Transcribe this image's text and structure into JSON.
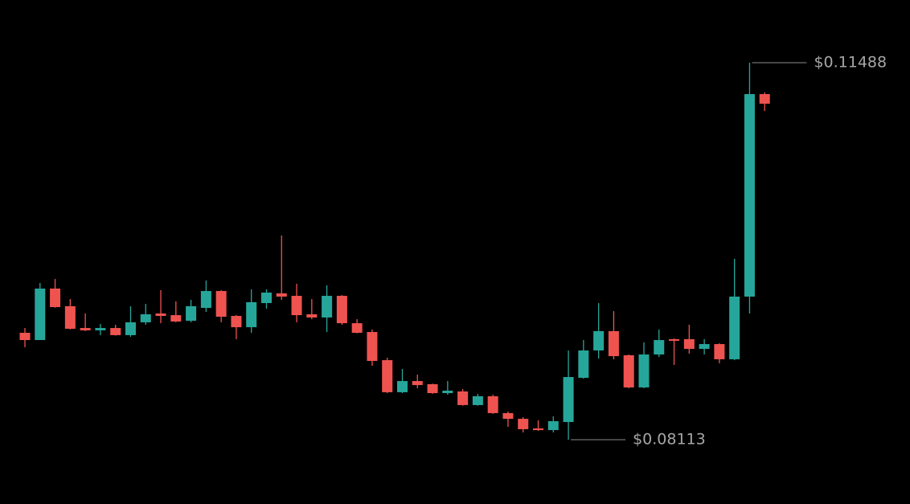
{
  "chart_data": {
    "type": "candlestick",
    "up_color": "#26a69a",
    "down_color": "#ef5350",
    "open": [
      0.0907,
      0.09005,
      0.09466,
      0.09308,
      0.09113,
      0.09092,
      0.09113,
      0.09049,
      0.09164,
      0.09243,
      0.09228,
      0.09178,
      0.09293,
      0.09444,
      0.09221,
      0.0912,
      0.09336,
      0.09423,
      0.09401,
      0.09236,
      0.09207,
      0.09401,
      0.09156,
      0.09077,
      0.08825,
      0.08538,
      0.08638,
      0.0861,
      0.0853,
      0.08545,
      0.08423,
      0.08502,
      0.08351,
      0.083,
      0.08214,
      0.08199,
      0.08271,
      0.08667,
      0.08912,
      0.09085,
      0.08869,
      0.08581,
      0.08876,
      0.09013,
      0.09013,
      0.08926,
      0.08969,
      0.08833,
      0.09394,
      0.11207
    ],
    "high": [
      0.09113,
      0.09516,
      0.09552,
      0.09372,
      0.09243,
      0.09149,
      0.09142,
      0.09308,
      0.09329,
      0.09452,
      0.09351,
      0.09365,
      0.09538,
      0.09452,
      0.0923,
      0.09459,
      0.09459,
      0.09941,
      0.09509,
      0.09372,
      0.09495,
      0.09408,
      0.09192,
      0.09099,
      0.08847,
      0.08746,
      0.08696,
      0.08615,
      0.08638,
      0.08566,
      0.08523,
      0.08516,
      0.08365,
      0.08315,
      0.08286,
      0.08322,
      0.08912,
      0.09005,
      0.09336,
      0.09264,
      0.08876,
      0.08984,
      0.09099,
      0.0902,
      0.09142,
      0.09013,
      0.08976,
      0.09732,
      0.11488,
      0.11222
    ],
    "low": [
      0.08941,
      0.09005,
      0.09295,
      0.091,
      0.09085,
      0.09049,
      0.09045,
      0.09034,
      0.09142,
      0.09156,
      0.09164,
      0.09164,
      0.09257,
      0.09164,
      0.09013,
      0.0907,
      0.09286,
      0.09365,
      0.09164,
      0.09192,
      0.09077,
      0.09142,
      0.09065,
      0.08775,
      0.0853,
      0.0853,
      0.08574,
      0.08523,
      0.08516,
      0.08418,
      0.08418,
      0.08344,
      0.08228,
      0.08178,
      0.08192,
      0.08178,
      0.08113,
      0.0866,
      0.0884,
      0.08833,
      0.08574,
      0.08574,
      0.08854,
      0.08782,
      0.08883,
      0.08876,
      0.08797,
      0.08825,
      0.09243,
      0.11056
    ],
    "close": [
      0.09005,
      0.09466,
      0.093,
      0.09106,
      0.09092,
      0.09113,
      0.09049,
      0.09164,
      0.09236,
      0.09221,
      0.09171,
      0.09308,
      0.09444,
      0.09214,
      0.0912,
      0.09344,
      0.0943,
      0.09394,
      0.09228,
      0.09207,
      0.09401,
      0.09156,
      0.0907,
      0.08818,
      0.08538,
      0.08638,
      0.08602,
      0.0853,
      0.08552,
      0.08423,
      0.08502,
      0.08351,
      0.083,
      0.08207,
      0.08199,
      0.08279,
      0.08674,
      0.08912,
      0.09085,
      0.08861,
      0.08581,
      0.08876,
      0.09005,
      0.08998,
      0.08926,
      0.08969,
      0.08833,
      0.09394,
      0.11207,
      0.11121
    ],
    "annotations": [
      {
        "value": 0.11488,
        "label": "$0.11488"
      },
      {
        "value": 0.08113,
        "label": "$0.08113"
      }
    ]
  }
}
